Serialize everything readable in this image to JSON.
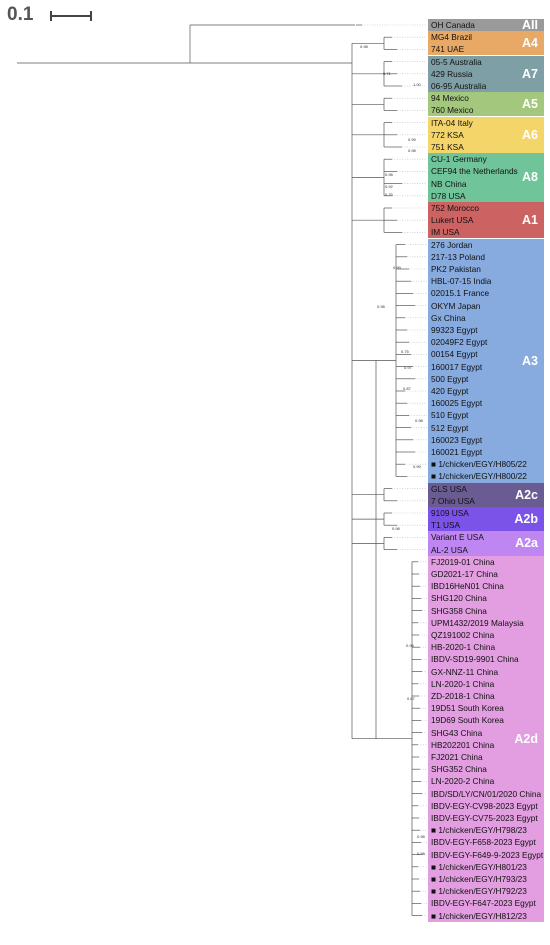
{
  "scale": {
    "label": "0.1"
  },
  "clades": [
    {
      "label": "AII",
      "color": "#9a9a9a",
      "leaves": [
        "OH Canada"
      ]
    },
    {
      "label": "A4",
      "color": "#e9a966",
      "leaves": [
        "MG4 Brazil",
        "741 UAE"
      ]
    },
    {
      "label": "A7",
      "color": "#7f9fa6",
      "leaves": [
        "05-5 Australia",
        "429 Russia",
        "06-95 Australia"
      ]
    },
    {
      "label": "A5",
      "color": "#a3c77c",
      "leaves": [
        "94 Mexico",
        "760 Mexico"
      ]
    },
    {
      "label": "A6",
      "color": "#f4d56a",
      "leaves": [
        "ITA-04 Italy",
        "772 KSA",
        "751 KSA"
      ]
    },
    {
      "label": "A8",
      "color": "#70c499",
      "leaves": [
        "CU-1 Germany",
        "CEF94 the Netherlands",
        "NB China",
        "D78 USA"
      ]
    },
    {
      "label": "A1",
      "color": "#cc6262",
      "leaves": [
        "752 Morocco",
        "Lukert USA",
        "IM USA"
      ]
    },
    {
      "label": "A3",
      "color": "#87aadf",
      "leaves": [
        "276 Jordan",
        "217-13 Poland",
        "PK2 Pakistan",
        "HBL-07-15 India",
        "02015.1 France",
        "OKYM Japan",
        "Gx China",
        "99323 Egypt",
        "02049F2 Egypt",
        "00154 Egypt",
        "160017 Egypt",
        "500 Egypt",
        "420 Egypt",
        "160025 Egypt",
        "510 Egypt",
        "512 Egypt",
        "160023 Egypt",
        "160021 Egypt",
        "■ 1/chicken/EGY/H805/22",
        "■ 1/chicken/EGY/H800/22"
      ]
    },
    {
      "label": "A2c",
      "color": "#6a5b93",
      "leaves": [
        "GLS USA",
        "7 Ohio USA"
      ]
    },
    {
      "label": "A2b",
      "color": "#7b53e8",
      "leaves": [
        "9109 USA",
        "T1 USA"
      ]
    },
    {
      "label": "A2a",
      "color": "#bf86f2",
      "leaves": [
        "Variant E USA",
        "AL-2 USA"
      ]
    },
    {
      "label": "A2d",
      "color": "#e29ee0",
      "leaves": [
        "FJ2019-01 China",
        "GD2021-17 China",
        "IBD16HeN01 China",
        "SHG120 China",
        "SHG358 China",
        "UPM1432/2019 Malaysia",
        "QZ191002 China",
        "HB-2020-1 China",
        "IBDV-SD19-9901 China",
        "GX-NNZ-11 China",
        "LN-2020-1 China",
        "ZD-2018-1 China",
        "19D51 South Korea",
        "19D69 South Korea",
        "SHG43 China",
        "HB202201 China",
        "FJ2021 China",
        "SHG352 China",
        "LN-2020-2 China",
        "IBD/SD/LY/CN/01/2020 China",
        "IBDV-EGY-CV98-2023 Egypt",
        "IBDV-EGY-CV75-2023 Egypt",
        "■ 1/chicken/EGY/H798/23",
        "IBDV-EGY-F658-2023 Egypt",
        "IBDV-EGY-F649-9-2023 Egypt",
        "■ 1/chicken/EGY/H801/23",
        "■ 1/chicken/EGY/H793/23",
        "■ 1/chicken/EGY/H792/23",
        "IBDV-EGY-F647-2023 Egypt",
        "■ 1/chicken/EGY/H812/23"
      ]
    }
  ],
  "supports": [
    "0.98",
    "0.71",
    "1.00",
    "0.99",
    "0.98",
    "0.98",
    "0.92",
    "0.75",
    "0.99",
    "0.98",
    "0.75",
    "0.97",
    "0.87",
    "0.98",
    "0.99",
    "0.98",
    "0.98",
    "0.98",
    "0.98",
    "0.87"
  ]
}
